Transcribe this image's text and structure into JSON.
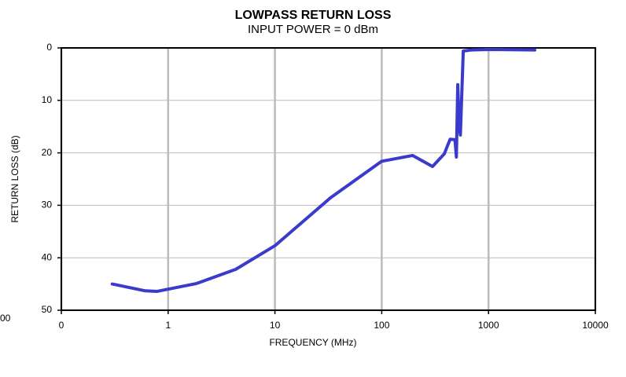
{
  "chart_data": {
    "type": "line",
    "title": "LOWPASS RETURN LOSS",
    "subtitle": "INPUT POWER = 0 dBm",
    "x_label": "FREQUENCY (MHz)",
    "y_label": "RETURN LOSS (dB)",
    "annotation": "00",
    "x_scale": "log",
    "y_inverted": true,
    "grid": true,
    "xlim": [
      0.1,
      10000
    ],
    "xticks": [
      {
        "value": 0.1,
        "label": "0"
      },
      1,
      10,
      100,
      1000,
      10000
    ],
    "ylim": [
      0,
      50
    ],
    "yticks": [
      0,
      10,
      20,
      30,
      40,
      50
    ],
    "x": [
      0.3,
      0.61,
      0.79,
      1.85,
      4.3,
      10,
      33,
      100,
      195,
      299,
      385,
      437,
      485,
      500,
      515,
      530,
      545,
      580,
      690,
      1000,
      2710
    ],
    "series": [
      {
        "name": "Return loss",
        "color": "#3a3acc",
        "values": [
          45,
          46.3,
          46.4,
          44.9,
          42.2,
          37.7,
          28.6,
          21.6,
          20.5,
          22.6,
          20.2,
          17.4,
          17.5,
          20.8,
          7,
          14.8,
          16.6,
          0.6,
          0.4,
          0.3,
          0.4
        ]
      }
    ]
  }
}
